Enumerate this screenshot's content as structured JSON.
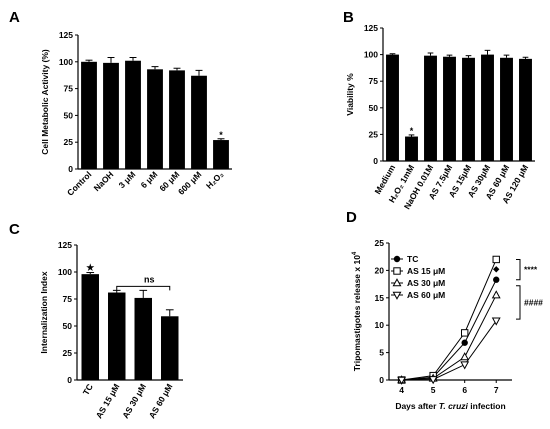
{
  "chart_data": [
    {
      "panel": "A",
      "type": "bar",
      "ylabel": "Cell Metabolic Activity (%)",
      "ylim": [
        0,
        125
      ],
      "yticks": [
        "0",
        "25",
        "50",
        "75",
        "100",
        "125"
      ],
      "categories": [
        "Control",
        "NaOH",
        "3 μM",
        "6 μM",
        "60 μM",
        "600 μM",
        "H₂O₂"
      ],
      "values": [
        100,
        99,
        101,
        93,
        92,
        87,
        27
      ],
      "errors": [
        1.5,
        5,
        3,
        2.5,
        2,
        5,
        1.2
      ],
      "annotations": [
        {
          "category": "H₂O₂",
          "text": "*"
        }
      ]
    },
    {
      "panel": "B",
      "type": "bar",
      "ylabel": "Viability %",
      "ylim": [
        0,
        125
      ],
      "yticks": [
        "0",
        "25",
        "50",
        "75",
        "100",
        "125"
      ],
      "categories": [
        "Medium",
        "H₂O₂ 1mM",
        "NaOH 0.01M",
        "AS 7.5μM",
        "AS 15μM",
        "AS 30μM",
        "AS 60 μM",
        "AS 120 μM"
      ],
      "values": [
        100,
        23,
        99,
        98,
        97,
        100,
        97,
        96
      ],
      "errors": [
        0.8,
        1.5,
        2.5,
        1.5,
        2,
        4,
        2.5,
        1.5
      ],
      "annotations": [
        {
          "category": "H₂O₂ 1mM",
          "text": "*"
        }
      ]
    },
    {
      "panel": "C",
      "type": "bar",
      "ylabel": "Internalization Index",
      "ylim": [
        0,
        125
      ],
      "yticks": [
        "0",
        "25",
        "50",
        "75",
        "100",
        "125"
      ],
      "categories": [
        "TC",
        "AS 15 μM",
        "AS 30 μM",
        "AS 60 μM"
      ],
      "values": [
        98,
        81,
        76,
        59
      ],
      "errors": [
        1.5,
        2,
        7,
        6
      ],
      "annotations": [
        {
          "category": "TC",
          "text": "★"
        },
        {
          "text": "ns"
        }
      ]
    },
    {
      "panel": "D",
      "type": "line",
      "xlabel_parts": [
        "Days after ",
        "T. cruzi",
        " infection"
      ],
      "ylabel_parts": [
        "Tripomastigotes release x 10",
        "4"
      ],
      "xlim": [
        3.6,
        7.5
      ],
      "ylim": [
        0,
        25
      ],
      "xticks": [
        "4",
        "5",
        "6",
        "7"
      ],
      "yticks": [
        "0",
        "5",
        "10",
        "15",
        "20",
        "25"
      ],
      "x": [
        4,
        5,
        6,
        7
      ],
      "series": [
        {
          "name": "TC",
          "marker": "circle",
          "values": [
            0,
            0.5,
            6.8,
            18.3
          ]
        },
        {
          "name": "AS 15 μM",
          "marker": "square",
          "values": [
            0,
            0.8,
            8.6,
            22
          ]
        },
        {
          "name": "AS 30 μM",
          "marker": "triangle-up",
          "values": [
            0,
            0.3,
            4.2,
            15.5
          ]
        },
        {
          "name": "AS 60 μM",
          "marker": "triangle-down",
          "values": [
            0,
            0.1,
            2.8,
            10.8
          ]
        }
      ],
      "extra_points": [
        {
          "x": 7,
          "y": 20.2,
          "marker": "diamond"
        }
      ],
      "significance": [
        "****",
        "####"
      ]
    }
  ],
  "panel_labels": [
    "A",
    "B",
    "C",
    "D"
  ]
}
